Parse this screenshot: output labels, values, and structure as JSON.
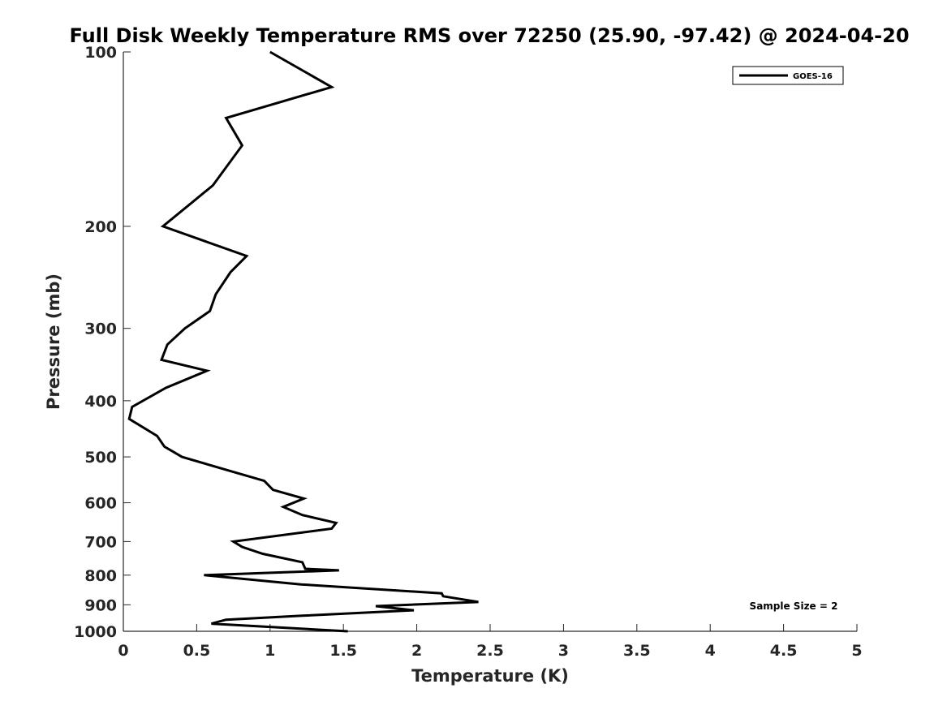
{
  "chart_data": {
    "type": "line",
    "title": "Full Disk Weekly Temperature RMS over 72250 (25.90, -97.42) @ 2024-04-20",
    "xlabel": "Temperature (K)",
    "ylabel": "Pressure (mb)",
    "xlim": [
      0,
      5
    ],
    "ylim": [
      100,
      1000
    ],
    "yscale": "log",
    "yreversed": true,
    "x_ticks": [
      0,
      0.5,
      1,
      1.5,
      2,
      2.5,
      3,
      3.5,
      4,
      4.5,
      5
    ],
    "x_tick_labels": [
      "0",
      "0.5",
      "1",
      "1.5",
      "2",
      "2.5",
      "3",
      "3.5",
      "4",
      "4.5",
      "5"
    ],
    "y_ticks": [
      100,
      200,
      300,
      400,
      500,
      600,
      700,
      800,
      900,
      1000
    ],
    "y_tick_labels": [
      "100",
      "200",
      "300",
      "400",
      "500",
      "600",
      "700",
      "800",
      "900",
      "1000"
    ],
    "grid": false,
    "legend_position": "top-right",
    "annotation": "Sample Size = 2",
    "series": [
      {
        "name": "GOES-16",
        "color": "#000000",
        "x": [
          1.0,
          1.42,
          0.7,
          0.81,
          0.61,
          0.27,
          0.84,
          0.73,
          0.63,
          0.59,
          0.42,
          0.3,
          0.26,
          0.57,
          0.29,
          0.06,
          0.04,
          0.23,
          0.28,
          0.4,
          0.74,
          0.96,
          1.02,
          1.23,
          1.09,
          1.22,
          1.45,
          1.42,
          0.75,
          0.81,
          0.95,
          1.22,
          1.24,
          1.47,
          0.55,
          1.21,
          2.17,
          2.18,
          2.42,
          1.72,
          1.98,
          1.22,
          0.7,
          0.6,
          1.53
        ],
        "y": [
          100,
          115,
          130,
          145,
          170,
          200,
          225,
          240,
          262,
          280,
          300,
          320,
          340,
          355,
          380,
          410,
          430,
          460,
          480,
          500,
          530,
          550,
          570,
          590,
          610,
          630,
          650,
          665,
          700,
          715,
          735,
          760,
          780,
          785,
          800,
          830,
          860,
          870,
          890,
          905,
          920,
          940,
          955,
          970,
          1000
        ]
      }
    ]
  }
}
